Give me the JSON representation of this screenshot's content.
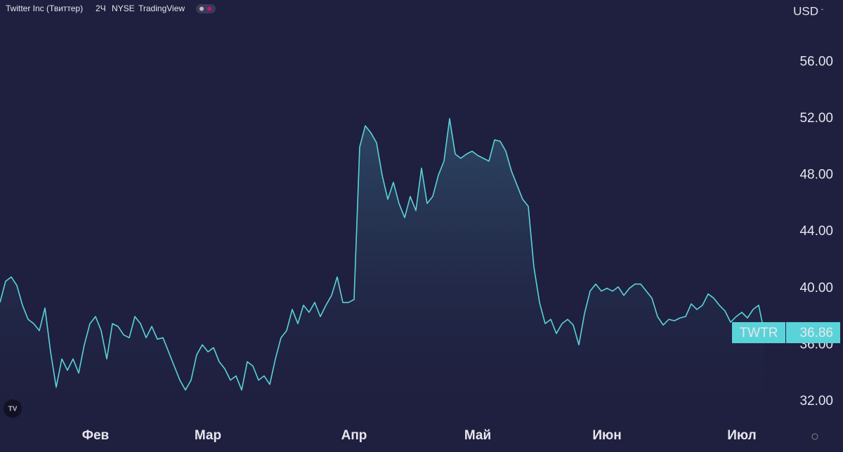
{
  "chart_data": {
    "type": "area",
    "title": "Twitter Inc (Твиттер)",
    "interval": "2Ч",
    "exchange": "NYSE",
    "source": "TradingView",
    "currency": "USD",
    "symbol": "TWTR",
    "color": "#5ad3d8",
    "categories": [
      null,
      null,
      null,
      null,
      null,
      null,
      null,
      null,
      null,
      null,
      null,
      null,
      null,
      null,
      null,
      null,
      null,
      "Фев",
      null,
      null,
      null,
      null,
      null,
      null,
      null,
      null,
      null,
      null,
      null,
      null,
      null,
      null,
      null,
      null,
      null,
      null,
      null,
      "Мар",
      null,
      null,
      null,
      null,
      null,
      null,
      null,
      null,
      null,
      null,
      null,
      null,
      null,
      null,
      null,
      null,
      null,
      null,
      null,
      null,
      null,
      null,
      null,
      null,
      null,
      "Апр",
      null,
      null,
      null,
      null,
      null,
      null,
      null,
      null,
      null,
      null,
      null,
      null,
      null,
      null,
      null,
      null,
      null,
      null,
      null,
      null,
      null,
      "Май",
      null,
      null,
      null,
      null,
      null,
      null,
      null,
      null,
      null,
      null,
      null,
      null,
      null,
      null,
      null,
      null,
      null,
      null,
      null,
      null,
      null,
      null,
      "Июн",
      null,
      null,
      null,
      null,
      null,
      null,
      null,
      null,
      null,
      null,
      null,
      null,
      null,
      null,
      null,
      null,
      null,
      null,
      null,
      null,
      null,
      null,
      null,
      "Июл",
      null,
      null,
      null,
      null
    ],
    "values": [
      39.0,
      40.5,
      40.8,
      40.2,
      38.8,
      37.8,
      37.5,
      37.0,
      38.6,
      35.5,
      33.0,
      35.0,
      34.2,
      35.0,
      34.0,
      36.0,
      37.5,
      38.0,
      37.0,
      35.0,
      37.5,
      37.3,
      36.7,
      36.5,
      38.0,
      37.5,
      36.5,
      37.3,
      36.4,
      36.5,
      35.5,
      34.5,
      33.5,
      32.8,
      33.5,
      35.3,
      36.0,
      35.5,
      35.8,
      34.8,
      34.3,
      33.5,
      33.8,
      32.8,
      34.8,
      34.5,
      33.5,
      33.8,
      33.2,
      35.0,
      36.5,
      37.0,
      38.5,
      37.5,
      38.8,
      38.3,
      39.0,
      38.0,
      38.8,
      39.5,
      40.8,
      39.0,
      39.0,
      39.2,
      50.0,
      51.5,
      51.0,
      50.3,
      48.0,
      46.3,
      47.5,
      46.0,
      45.0,
      46.5,
      45.5,
      48.5,
      46.0,
      46.5,
      48.0,
      49.0,
      52.0,
      49.5,
      49.2,
      49.5,
      49.7,
      49.4,
      49.2,
      49.0,
      50.5,
      50.4,
      49.7,
      48.3,
      47.3,
      46.3,
      45.8,
      41.5,
      39.0,
      37.5,
      37.8,
      36.8,
      37.5,
      37.8,
      37.4,
      36.0,
      38.2,
      39.8,
      40.3,
      39.8,
      40.0,
      39.8,
      40.1,
      39.5,
      40.0,
      40.3,
      40.3,
      39.8,
      39.3,
      38.0,
      37.4,
      37.8,
      37.7,
      37.9,
      38.0,
      38.9,
      38.5,
      38.8,
      39.6,
      39.3,
      38.8,
      38.4,
      37.6,
      38.0,
      38.3,
      37.9,
      38.5,
      38.8,
      36.86
    ],
    "ylim": [
      30.6,
      60.4
    ],
    "yticks": [
      {
        "value": 32,
        "label": "32.00"
      },
      {
        "value": 36,
        "label": "36.00"
      },
      {
        "value": 40,
        "label": "40.00"
      },
      {
        "value": 44,
        "label": "44.00"
      },
      {
        "value": 48,
        "label": "48.00"
      },
      {
        "value": 52,
        "label": "52.00"
      },
      {
        "value": 56,
        "label": "56.00"
      }
    ],
    "grid": false
  }
}
